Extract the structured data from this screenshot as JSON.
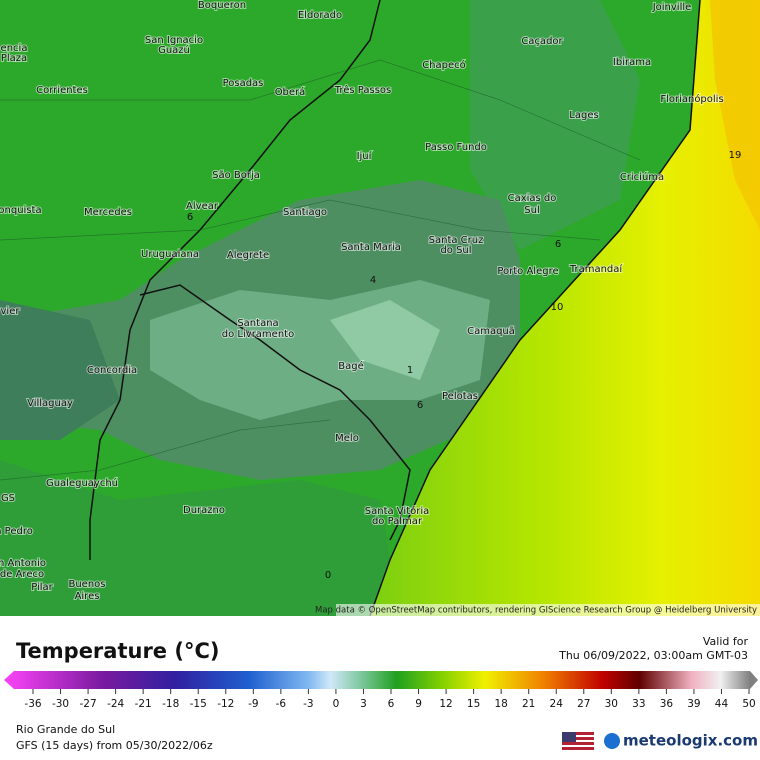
{
  "map": {
    "labels": [
      "Boqueron",
      "Eldorado",
      "Joinville",
      "encia",
      "Plaza",
      "San Ignacio",
      "Guazú",
      "Caçador",
      "Chapecó",
      "Ibirama",
      "Posadas",
      "Oberá",
      "Três Passos",
      "Corrientes",
      "Florianópolis",
      "Lages",
      "Ijuí",
      "Passo Fundo",
      "São Borja",
      "Criciúma",
      "Caxias do",
      "Sul",
      "Alvear",
      "onquista",
      "Mercedes",
      "Santiago",
      "Santa Maria",
      "Santa Cruz",
      "do Sul",
      "Uruguaiana",
      "Alegrete",
      "Porto Alegre",
      "Tramandaí",
      "vier",
      "Santana",
      "do Livramento",
      "Camaquã",
      "Concordia",
      "Bagé",
      "Pelotas",
      "Villaguay",
      "Melo",
      "Gualeguaychú",
      "GS",
      "Durazno",
      "Santa Vitória",
      "do Palmar",
      "n Pedro",
      "n Antonio",
      "de Areco",
      "Pilar",
      "Buenos",
      "Aires"
    ],
    "contour_labels": [
      "19",
      "6",
      "4",
      "1",
      "6",
      "10",
      "6",
      "0"
    ],
    "attribution": "Map data © OpenStreetMap contributors, rendering GIScience Research Group @ Heidelberg University"
  },
  "legend": {
    "title": "Temperature (°C)",
    "valid_label": "Valid for",
    "valid_time": "Thu 06/09/2022, 03:00am GMT-03",
    "ticks": [
      -36,
      -30,
      -27,
      -24,
      -21,
      -18,
      -15,
      -12,
      -9,
      -6,
      -3,
      0,
      3,
      6,
      9,
      12,
      15,
      18,
      21,
      24,
      27,
      30,
      33,
      36,
      39,
      44,
      50
    ]
  },
  "footer": {
    "region": "Rio Grande do Sul",
    "model": "GFS (15 days) from  05/30/2022/06z",
    "logo": "meteologix.com"
  }
}
